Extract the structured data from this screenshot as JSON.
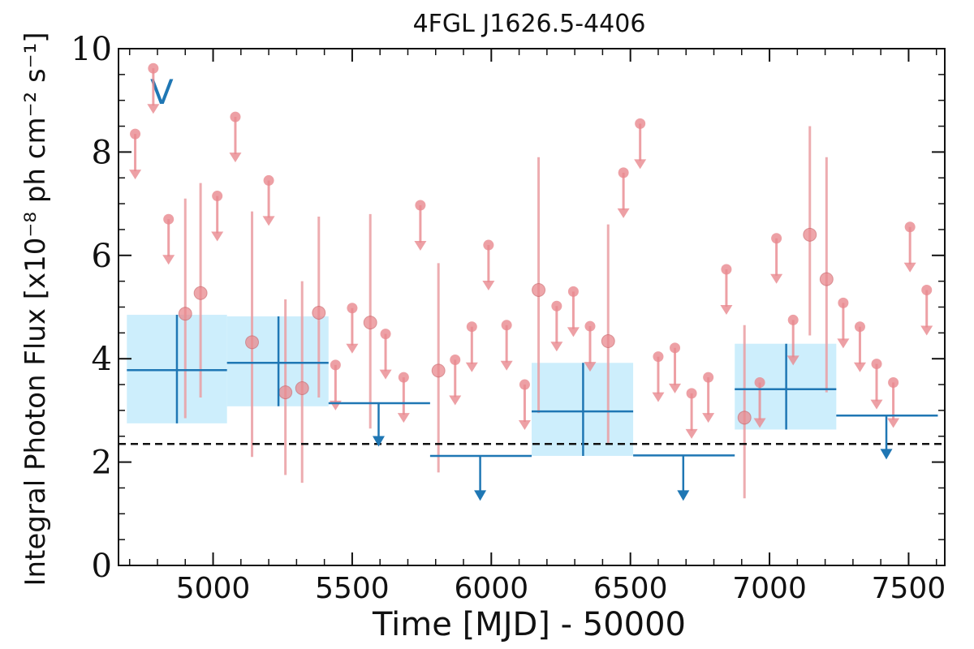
{
  "chart_data": {
    "type": "scatter",
    "title": "4FGL J1626.5-4406",
    "xlabel": "Time [MJD] - 50000",
    "ylabel": "Integral Photon Flux [x10⁻⁸ ph cm⁻² s⁻¹]",
    "flag_label": "V",
    "xlim": [
      4660,
      7630
    ],
    "ylim": [
      0,
      10
    ],
    "xticks": [
      5000,
      5500,
      6000,
      6500,
      7000,
      7500
    ],
    "yticks": [
      0,
      2,
      4,
      6,
      8,
      10
    ],
    "reference_level": 2.35,
    "colors": {
      "monthly": "#e8888e",
      "monthly_errorbar": "#ea9ea2",
      "yearly": "#1f77b4",
      "yearly_band": "#cdeefc",
      "reference": "#111111"
    },
    "series": [
      {
        "name": "",
        "kind": "monthly_detections",
        "points": [
          {
            "x": 4900,
            "y": 4.87,
            "lo": 2.85,
            "hi": 7.1
          },
          {
            "x": 4955,
            "y": 5.27,
            "lo": 3.25,
            "hi": 7.4
          },
          {
            "x": 5140,
            "y": 4.32,
            "lo": 2.1,
            "hi": 6.85
          },
          {
            "x": 5260,
            "y": 3.35,
            "lo": 1.75,
            "hi": 5.15
          },
          {
            "x": 5320,
            "y": 3.43,
            "lo": 1.6,
            "hi": 5.5
          },
          {
            "x": 5380,
            "y": 4.89,
            "lo": 3.25,
            "hi": 6.75
          },
          {
            "x": 5565,
            "y": 4.7,
            "lo": 2.65,
            "hi": 6.8
          },
          {
            "x": 5810,
            "y": 3.77,
            "lo": 1.8,
            "hi": 5.85
          },
          {
            "x": 6170,
            "y": 5.33,
            "lo": 2.95,
            "hi": 7.9
          },
          {
            "x": 6420,
            "y": 4.34,
            "lo": 2.35,
            "hi": 6.6
          },
          {
            "x": 6910,
            "y": 2.86,
            "lo": 1.3,
            "hi": 4.65
          },
          {
            "x": 7145,
            "y": 6.4,
            "lo": 4.45,
            "hi": 8.5
          },
          {
            "x": 7205,
            "y": 5.54,
            "lo": 3.35,
            "hi": 7.9
          }
        ]
      },
      {
        "name": "",
        "kind": "monthly_upper_limits",
        "points": [
          {
            "x": 4720,
            "y": 8.35
          },
          {
            "x": 4785,
            "y": 9.62
          },
          {
            "x": 4840,
            "y": 6.7
          },
          {
            "x": 5015,
            "y": 7.15
          },
          {
            "x": 5080,
            "y": 8.68
          },
          {
            "x": 5200,
            "y": 7.45
          },
          {
            "x": 5440,
            "y": 3.88
          },
          {
            "x": 5500,
            "y": 4.98
          },
          {
            "x": 5620,
            "y": 4.48
          },
          {
            "x": 5685,
            "y": 3.64
          },
          {
            "x": 5745,
            "y": 6.97
          },
          {
            "x": 5870,
            "y": 3.98
          },
          {
            "x": 5930,
            "y": 4.62
          },
          {
            "x": 5990,
            "y": 6.2
          },
          {
            "x": 6055,
            "y": 4.65
          },
          {
            "x": 6120,
            "y": 3.5
          },
          {
            "x": 6235,
            "y": 5.02
          },
          {
            "x": 6295,
            "y": 5.3
          },
          {
            "x": 6355,
            "y": 4.63
          },
          {
            "x": 6475,
            "y": 7.6
          },
          {
            "x": 6535,
            "y": 8.55
          },
          {
            "x": 6600,
            "y": 4.04
          },
          {
            "x": 6660,
            "y": 4.21
          },
          {
            "x": 6720,
            "y": 3.33
          },
          {
            "x": 6780,
            "y": 3.64
          },
          {
            "x": 6845,
            "y": 5.73
          },
          {
            "x": 6965,
            "y": 3.54
          },
          {
            "x": 7025,
            "y": 6.33
          },
          {
            "x": 7085,
            "y": 4.75
          },
          {
            "x": 7265,
            "y": 5.08
          },
          {
            "x": 7325,
            "y": 4.62
          },
          {
            "x": 7385,
            "y": 3.9
          },
          {
            "x": 7445,
            "y": 3.54
          },
          {
            "x": 7505,
            "y": 6.55
          },
          {
            "x": 7565,
            "y": 5.33
          }
        ]
      },
      {
        "name": "",
        "kind": "yearly_detections",
        "points": [
          {
            "x0": 4690,
            "x1": 5050,
            "xc": 4870,
            "y": 3.78,
            "lo": 2.75,
            "hi": 4.85
          },
          {
            "x0": 5050,
            "x1": 5415,
            "xc": 5235,
            "y": 3.92,
            "lo": 3.08,
            "hi": 4.82
          },
          {
            "x0": 6145,
            "x1": 6510,
            "xc": 6330,
            "y": 2.98,
            "lo": 2.12,
            "hi": 3.92
          },
          {
            "x0": 6875,
            "x1": 7240,
            "xc": 7060,
            "y": 3.41,
            "lo": 2.63,
            "hi": 4.29
          }
        ]
      },
      {
        "name": "",
        "kind": "yearly_upper_limits",
        "points": [
          {
            "x0": 5415,
            "x1": 5780,
            "xc": 5595,
            "y": 3.14,
            "arrow_to": 2.3
          },
          {
            "x0": 5780,
            "x1": 6145,
            "xc": 5960,
            "y": 2.12,
            "arrow_to": 1.25
          },
          {
            "x0": 6510,
            "x1": 6875,
            "xc": 6690,
            "y": 2.13,
            "arrow_to": 1.25
          },
          {
            "x0": 7240,
            "x1": 7605,
            "xc": 7420,
            "y": 2.9,
            "arrow_to": 2.05
          }
        ]
      }
    ]
  }
}
